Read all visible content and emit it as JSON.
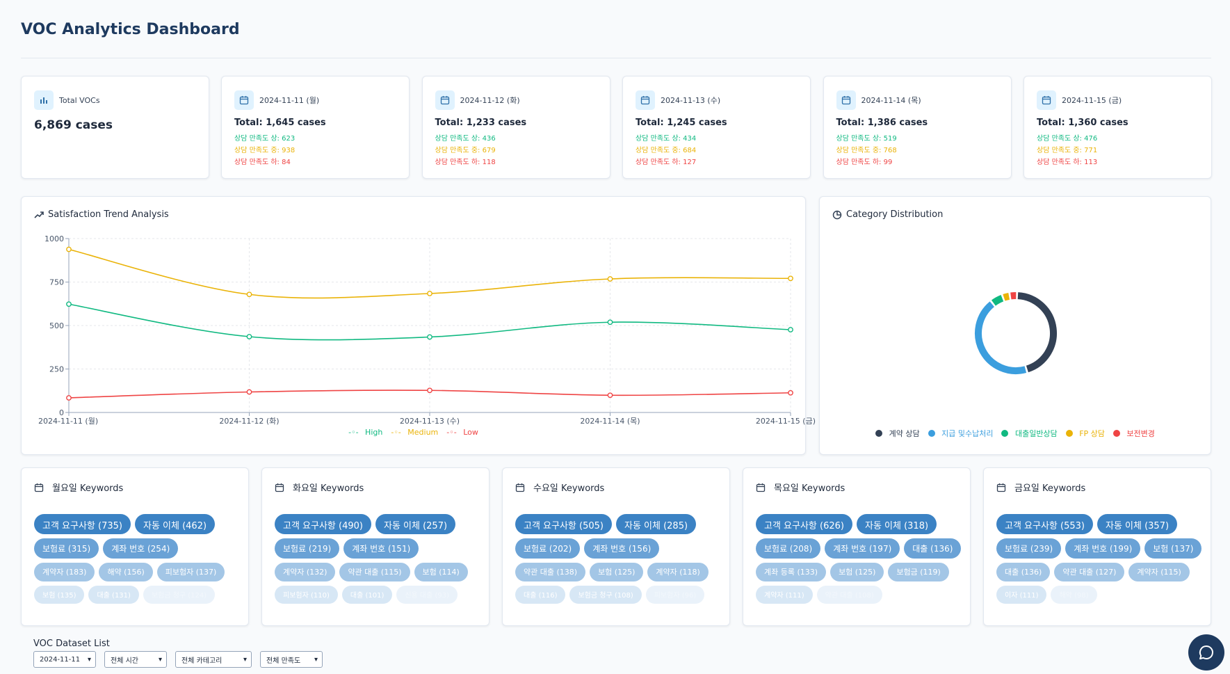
{
  "title": "VOC Analytics Dashboard",
  "total": {
    "label": "Total VOCs",
    "value": "6,869 cases"
  },
  "days": [
    {
      "date": "2024-11-11 (월)",
      "total": "Total: 1,645 cases",
      "high": "상담 만족도 상: 623",
      "medium": "상담 만족도 중: 938",
      "low": "상담 만족도 하: 84"
    },
    {
      "date": "2024-11-12 (화)",
      "total": "Total: 1,233 cases",
      "high": "상담 만족도 상: 436",
      "medium": "상담 만족도 중: 679",
      "low": "상담 만족도 하: 118"
    },
    {
      "date": "2024-11-13 (수)",
      "total": "Total: 1,245 cases",
      "high": "상담 만족도 상: 434",
      "medium": "상담 만족도 중: 684",
      "low": "상담 만족도 하: 127"
    },
    {
      "date": "2024-11-14 (목)",
      "total": "Total: 1,386 cases",
      "high": "상담 만족도 상: 519",
      "medium": "상담 만족도 중: 768",
      "low": "상담 만족도 하: 99"
    },
    {
      "date": "2024-11-15 (금)",
      "total": "Total: 1,360 cases",
      "high": "상담 만족도 상: 476",
      "medium": "상담 만족도 중: 771",
      "low": "상담 만족도 하: 113"
    }
  ],
  "trend": {
    "title": "Satisfaction Trend Analysis"
  },
  "distribution": {
    "title": "Category Distribution"
  },
  "colors": {
    "high": "#10b981",
    "medium": "#eab308",
    "low": "#ef4444",
    "accent": "#1e3a5f"
  },
  "chart_data": [
    {
      "type": "line",
      "title": "Satisfaction Trend Analysis",
      "categories": [
        "2024-11-11 (월)",
        "2024-11-12 (화)",
        "2024-11-13 (수)",
        "2024-11-14 (목)",
        "2024-11-15 (금)"
      ],
      "series": [
        {
          "name": "High",
          "color": "#10b981",
          "values": [
            623,
            436,
            434,
            519,
            476
          ]
        },
        {
          "name": "Medium",
          "color": "#eab308",
          "values": [
            938,
            679,
            684,
            768,
            771
          ]
        },
        {
          "name": "Low",
          "color": "#ef4444",
          "values": [
            84,
            118,
            127,
            99,
            113
          ]
        }
      ],
      "ylim": [
        0,
        1000
      ],
      "yticks": [
        "0",
        "250",
        "500",
        "750",
        "1000"
      ],
      "grid": true,
      "legend": "bottom"
    },
    {
      "type": "pie",
      "title": "Category Distribution",
      "labels": [
        "계약 상담",
        "지급 및수납처리",
        "대출일반상담",
        "FP 상담",
        "보전변경"
      ],
      "colors": [
        "#334155",
        "#3b9ede",
        "#10b981",
        "#eab308",
        "#ef4444"
      ],
      "values": [
        45,
        44,
        5,
        3,
        3
      ],
      "legend": "bottom"
    }
  ],
  "keywords": [
    {
      "title": "월요일 Keywords",
      "rows": [
        [
          [
            "고객 요구사항 (735)",
            1
          ],
          [
            "자동 이체 (462)",
            1
          ]
        ],
        [
          [
            "보험료 (315)",
            2
          ],
          [
            "계좌 번호 (254)",
            2
          ]
        ],
        [
          [
            "계약자 (183)",
            3
          ],
          [
            "해약 (156)",
            3
          ],
          [
            "피보험자 (137)",
            3
          ]
        ],
        [
          [
            "보험 (135)",
            4
          ],
          [
            "대출 (131)",
            4
          ],
          [
            "보험금 청구 (124)",
            5
          ]
        ]
      ]
    },
    {
      "title": "화요일 Keywords",
      "rows": [
        [
          [
            "고객 요구사항 (490)",
            1
          ],
          [
            "자동 이체 (257)",
            1
          ]
        ],
        [
          [
            "보험료 (219)",
            2
          ],
          [
            "계좌 번호 (151)",
            2
          ]
        ],
        [
          [
            "계약자 (132)",
            3
          ],
          [
            "약관 대출 (115)",
            3
          ],
          [
            "보험 (114)",
            3
          ]
        ],
        [
          [
            "피보험자 (110)",
            4
          ],
          [
            "대출 (101)",
            4
          ],
          [
            "신용 대출 (93)",
            5
          ]
        ]
      ]
    },
    {
      "title": "수요일 Keywords",
      "rows": [
        [
          [
            "고객 요구사항 (505)",
            1
          ],
          [
            "자동 이체 (285)",
            1
          ]
        ],
        [
          [
            "보험료 (202)",
            2
          ],
          [
            "계좌 번호 (156)",
            2
          ]
        ],
        [
          [
            "약관 대출 (138)",
            3
          ],
          [
            "보험 (125)",
            3
          ],
          [
            "계약자 (118)",
            3
          ]
        ],
        [
          [
            "대출 (116)",
            4
          ],
          [
            "보험금 청구 (108)",
            4
          ],
          [
            "피보험자 (96)",
            5
          ]
        ]
      ]
    },
    {
      "title": "목요일 Keywords",
      "rows": [
        [
          [
            "고객 요구사항 (626)",
            1
          ],
          [
            "자동 이체 (318)",
            1
          ]
        ],
        [
          [
            "보험료 (208)",
            2
          ],
          [
            "계좌 번호 (197)",
            2
          ],
          [
            "대출 (136)",
            2
          ]
        ],
        [
          [
            "계좌 등록 (133)",
            3
          ],
          [
            "보험 (125)",
            3
          ],
          [
            "보험금 (119)",
            3
          ]
        ],
        [
          [
            "계약자 (111)",
            4
          ],
          [
            "약관 대출 (108)",
            5
          ]
        ]
      ]
    },
    {
      "title": "금요일 Keywords",
      "rows": [
        [
          [
            "고객 요구사항 (553)",
            1
          ],
          [
            "자동 이체 (357)",
            1
          ]
        ],
        [
          [
            "보험료 (239)",
            2
          ],
          [
            "계좌 번호 (199)",
            2
          ],
          [
            "보험 (137)",
            2
          ]
        ],
        [
          [
            "대출 (136)",
            3
          ],
          [
            "약관 대출 (127)",
            3
          ],
          [
            "계약자 (115)",
            3
          ]
        ],
        [
          [
            "이자 (111)",
            4
          ],
          [
            "해약 (98)",
            5
          ]
        ]
      ]
    }
  ],
  "dataset": {
    "title": "VOC Dataset List",
    "filters": [
      "2024-11-11",
      "전체 시간",
      "전체 카테고리",
      "전체 만족도"
    ]
  }
}
